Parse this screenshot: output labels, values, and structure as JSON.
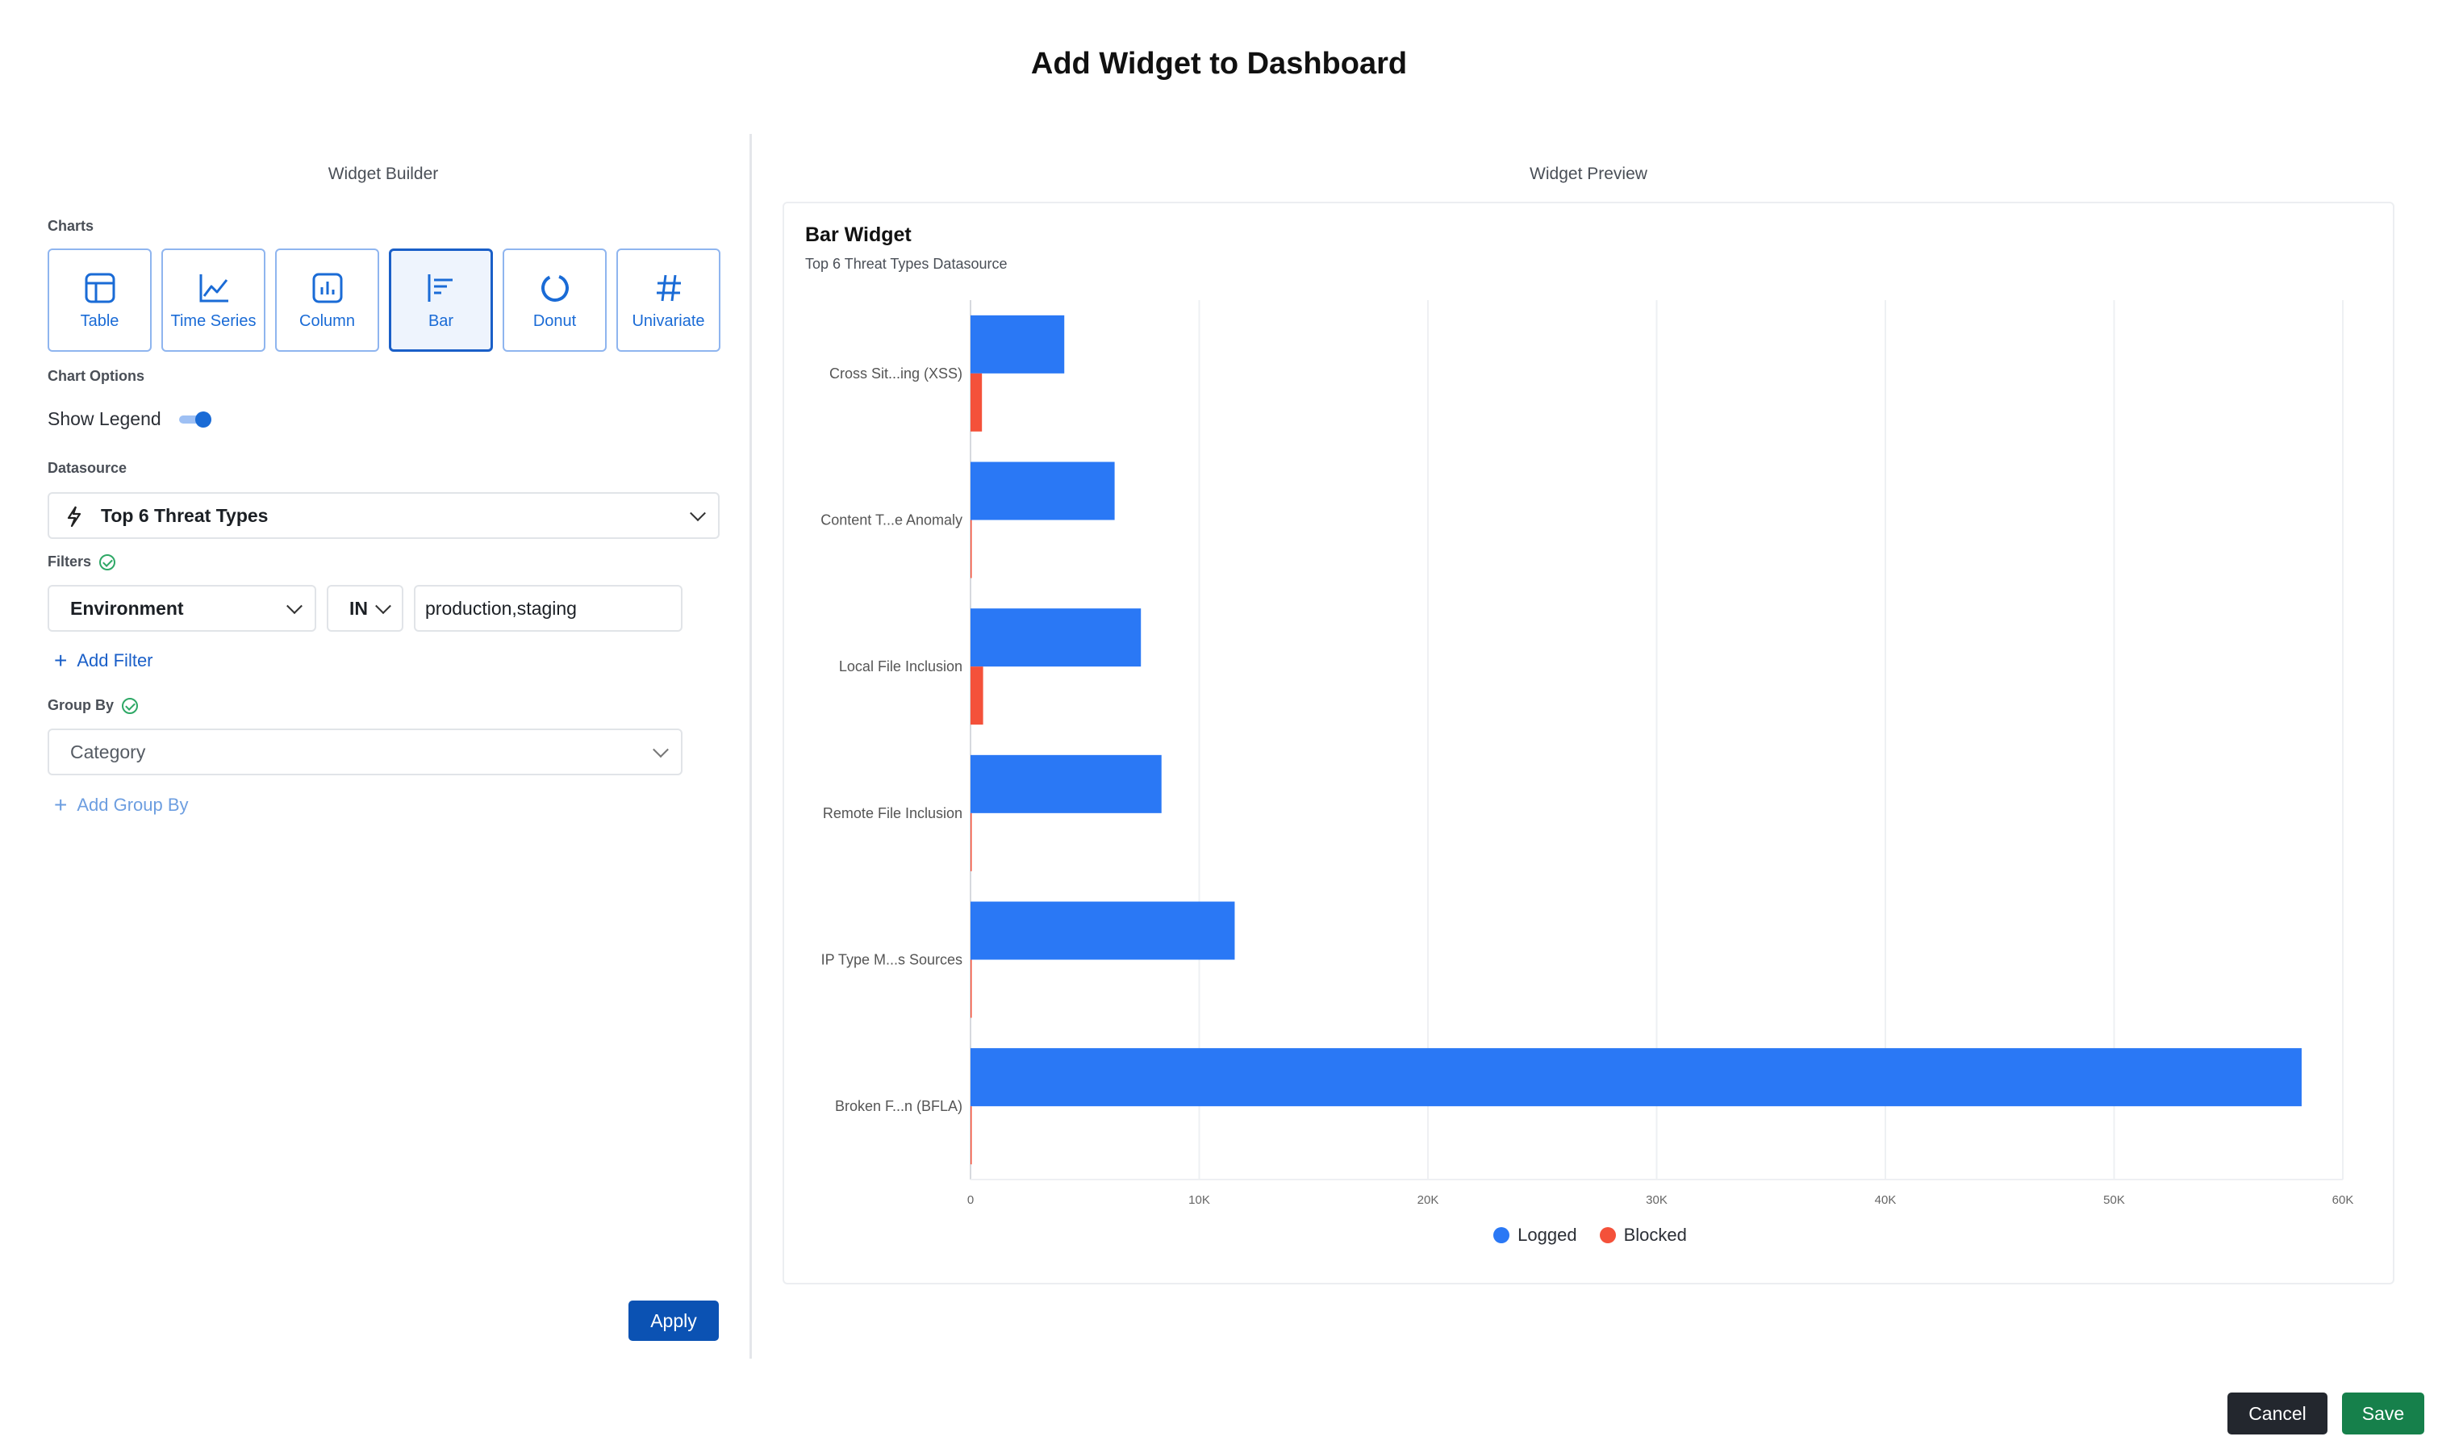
{
  "dialog": {
    "title": "Add Widget to Dashboard"
  },
  "builder": {
    "title": "Widget Builder",
    "charts_label": "Charts",
    "chart_types": [
      {
        "label": "Table",
        "icon": "table-icon",
        "selected": false
      },
      {
        "label": "Time Series",
        "icon": "time-series-icon",
        "selected": false
      },
      {
        "label": "Column",
        "icon": "column-chart-icon",
        "selected": false
      },
      {
        "label": "Bar",
        "icon": "bar-chart-icon",
        "selected": true
      },
      {
        "label": "Donut",
        "icon": "donut-icon",
        "selected": false
      },
      {
        "label": "Univariate",
        "icon": "hash-icon",
        "selected": false
      }
    ],
    "chart_options_label": "Chart Options",
    "show_legend_label": "Show Legend",
    "show_legend": true,
    "datasource_label": "Datasource",
    "datasource_value": "Top 6 Threat Types",
    "filters_label": "Filters",
    "filter": {
      "field": "Environment",
      "operator": "IN",
      "value": "production,staging"
    },
    "add_filter_label": "Add Filter",
    "group_by_label": "Group By",
    "group_by_placeholder": "Category",
    "add_group_by_label": "Add Group By",
    "apply_label": "Apply"
  },
  "preview": {
    "title": "Widget Preview",
    "widget_title": "Bar Widget",
    "widget_subtitle": "Top 6 Threat Types Datasource"
  },
  "chart_data": {
    "type": "bar",
    "orientation": "horizontal",
    "categories": [
      "Cross Sit...ing (XSS)",
      "Content T...e Anomaly",
      "Local File Inclusion",
      "Remote File Inclusion",
      "IP Type M...s Sources",
      "Broken F...n (BFLA)"
    ],
    "series": [
      {
        "name": "Logged",
        "color": "#2a78f5",
        "values": [
          4100,
          6300,
          7450,
          8350,
          11550,
          58200
        ]
      },
      {
        "name": "Blocked",
        "color": "#f4513a",
        "values": [
          500,
          50,
          550,
          50,
          50,
          50
        ]
      }
    ],
    "x_ticks": [
      "0",
      "10K",
      "20K",
      "30K",
      "40K",
      "50K",
      "60K"
    ],
    "xlim": [
      0,
      60000
    ],
    "grid": "vertical",
    "legend": "bottom-center"
  },
  "footer": {
    "cancel_label": "Cancel",
    "save_label": "Save"
  }
}
